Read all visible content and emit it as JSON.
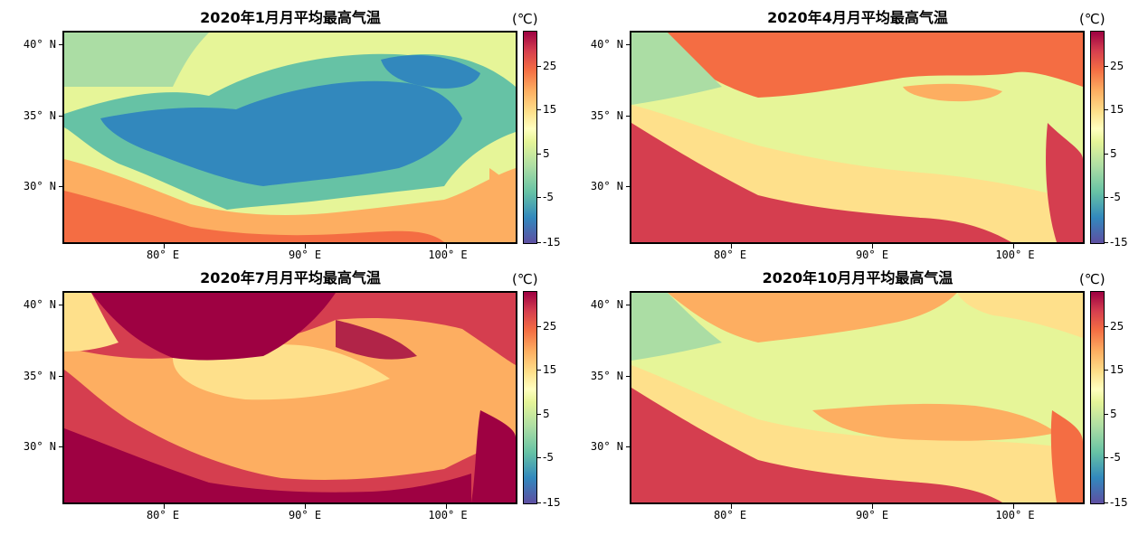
{
  "panels": [
    {
      "title": "2020年1月月平均最高气温",
      "season": "jan"
    },
    {
      "title": "2020年4月月平均最高气温",
      "season": "apr"
    },
    {
      "title": "2020年7月月平均最高气温",
      "season": "jul"
    },
    {
      "title": "2020年10月月平均最高气温",
      "season": "oct"
    }
  ],
  "lat_ticks": [
    "40° N",
    "35° N",
    "30° N"
  ],
  "lon_ticks": [
    "80° E",
    "90° E",
    "100° E"
  ],
  "colorbar": {
    "unit": "(℃)",
    "ticks": [
      "25",
      "15",
      "5",
      "-5",
      "-15"
    ],
    "colormap": [
      "#5e4fa2",
      "#3288bd",
      "#66c2a5",
      "#abdda4",
      "#e6f598",
      "#ffffbf",
      "#fee08b",
      "#fdae61",
      "#f46d43",
      "#d53e4f",
      "#9e0142"
    ]
  }
}
